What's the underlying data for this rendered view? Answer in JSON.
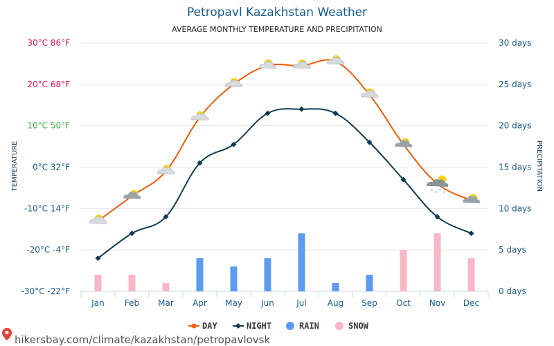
{
  "chart_data": {
    "type": "line",
    "title": "Petropavl Kazakhstan Weather",
    "subtitle": "AVERAGE MONTHLY TEMPERATURE AND PRECIPITATION",
    "categories": [
      "Jan",
      "Feb",
      "Mar",
      "Apr",
      "May",
      "Jun",
      "Jul",
      "Aug",
      "Sep",
      "Oct",
      "Nov",
      "Dec"
    ],
    "ylabel_left": "TEMPERATURE",
    "ylabel_right": "PRECIPITATION",
    "left_axis": {
      "ylim": [
        -30,
        30
      ],
      "ticks": [
        {
          "value": 30,
          "label": "30°C 86°F",
          "color": "#e0115f"
        },
        {
          "value": 20,
          "label": "20°C 68°F",
          "color": "#e0115f"
        },
        {
          "value": 10,
          "label": "10°C 50°F",
          "color": "#3cb43c"
        },
        {
          "value": 0,
          "label": "0°C 32°F",
          "color": "#1a5b8c"
        },
        {
          "value": -10,
          "label": "-10°C 14°F",
          "color": "#1a5b8c"
        },
        {
          "value": -20,
          "label": "-20°C -4°F",
          "color": "#1a5b8c"
        },
        {
          "value": -30,
          "label": "-30°C -22°F",
          "color": "#1a5b8c"
        }
      ]
    },
    "right_axis": {
      "ylim": [
        0,
        30
      ],
      "ticks": [
        {
          "value": 30,
          "label": "30 days"
        },
        {
          "value": 25,
          "label": "25 days"
        },
        {
          "value": 20,
          "label": "20 days"
        },
        {
          "value": 15,
          "label": "15 days"
        },
        {
          "value": 10,
          "label": "10 days"
        },
        {
          "value": 5,
          "label": "5 days"
        },
        {
          "value": 0,
          "label": "0 days"
        }
      ]
    },
    "series": [
      {
        "name": "DAY",
        "color": "#f25c05",
        "values": [
          -13,
          -7,
          -1,
          12,
          20,
          24.5,
          24.5,
          25.5,
          17.5,
          5.5,
          -4,
          -8
        ]
      },
      {
        "name": "NIGHT",
        "color": "#0d3b52",
        "values": [
          -22,
          -16,
          -12,
          1,
          5.5,
          13,
          14,
          13,
          6,
          -3,
          -12,
          -16
        ]
      }
    ],
    "bars": [
      {
        "name": "RAIN",
        "color": "#5b9cf2",
        "values": [
          0,
          0,
          0,
          4,
          3,
          4,
          7,
          1,
          2,
          0,
          0,
          0
        ]
      },
      {
        "name": "SNOW",
        "color": "#f7b8c6",
        "values": [
          2,
          2,
          1,
          0,
          0,
          0,
          0,
          0,
          0,
          5,
          7,
          4
        ]
      }
    ],
    "weather_icons": [
      "partly-cloudy-icon",
      "cloud-sun-icon",
      "partly-cloudy-icon",
      "partly-cloudy-icon",
      "partly-cloudy-icon",
      "partly-cloudy-icon",
      "partly-cloudy-icon",
      "partly-cloudy-icon",
      "partly-cloudy-icon",
      "cloud-sun-icon",
      "snow-cloud-icon",
      "cloud-sun-icon"
    ],
    "legend": [
      {
        "label": "DAY",
        "kind": "line",
        "color": "#f25c05"
      },
      {
        "label": "NIGHT",
        "kind": "line",
        "color": "#0d3b52"
      },
      {
        "label": "RAIN",
        "kind": "dot",
        "color": "#5b9cf2"
      },
      {
        "label": "SNOW",
        "kind": "dot",
        "color": "#f7b8c6"
      }
    ],
    "legend_position": "bottom"
  },
  "footer": {
    "text": "hikersbay.com/climate/kazakhstan/petropavlovsk",
    "icon": "map-pin-icon",
    "icon_color": "#e8433a"
  }
}
